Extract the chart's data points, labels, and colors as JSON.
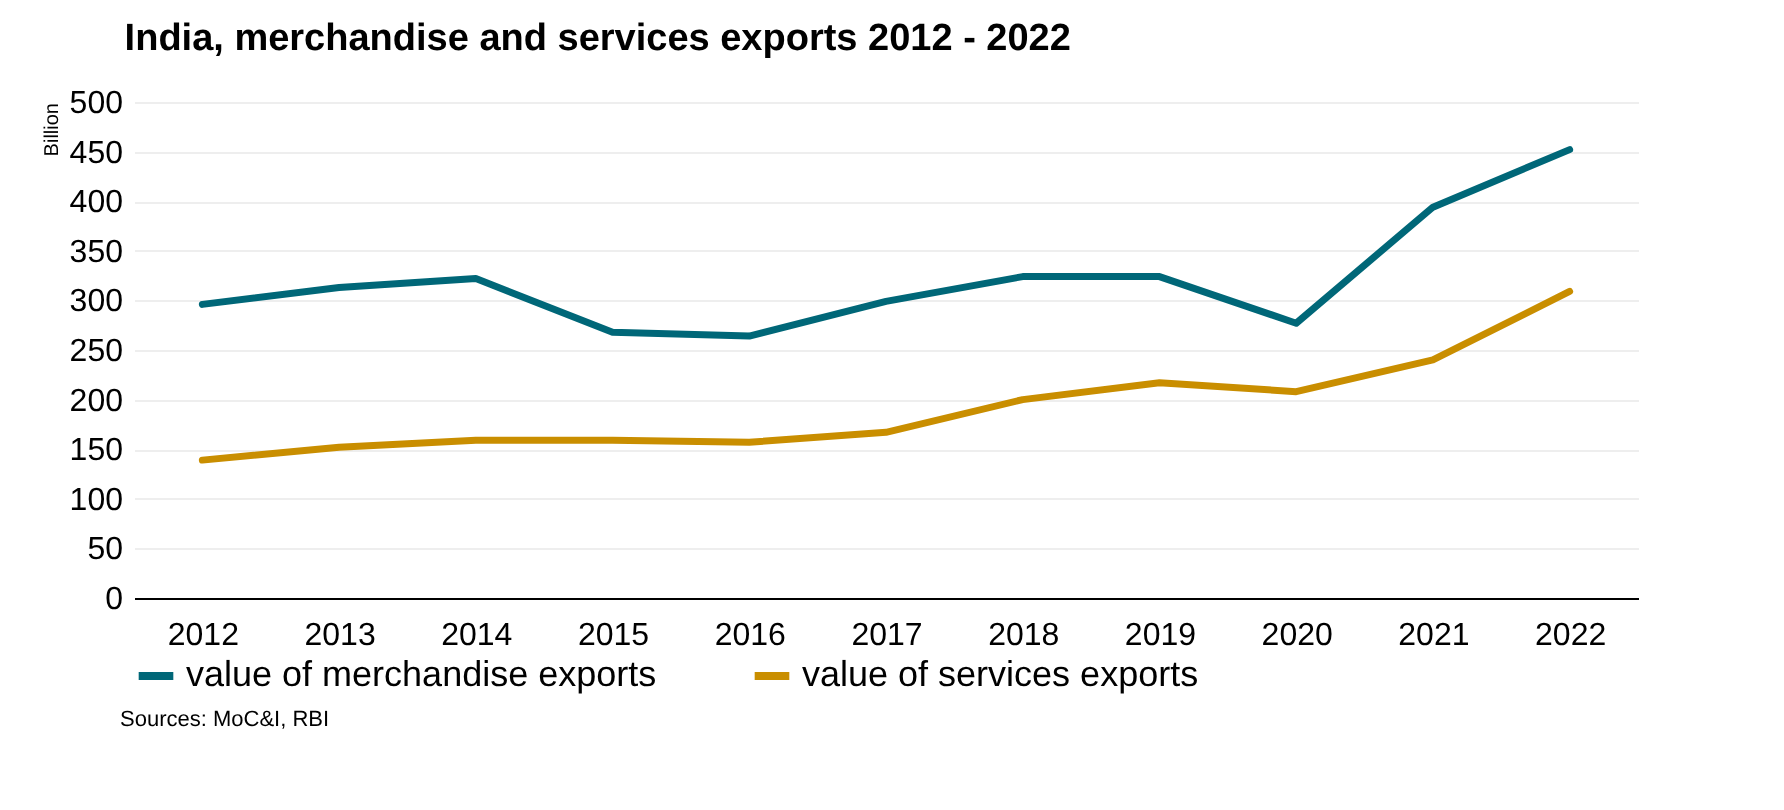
{
  "chart_data": {
    "type": "line",
    "title": "India, merchandise and services exports 2012 - 2022",
    "ylabel": "Billion",
    "categories": [
      "2012",
      "2013",
      "2014",
      "2015",
      "2016",
      "2017",
      "2018",
      "2019",
      "2020",
      "2021",
      "2022"
    ],
    "series": [
      {
        "name": "value of merchandise exports",
        "color": "#006778",
        "values": [
          296,
          313,
          322,
          268,
          264,
          299,
          324,
          324,
          277,
          394,
          452
        ]
      },
      {
        "name": "value of services exports",
        "color": "#c98e00",
        "values": [
          139,
          152,
          159,
          159,
          157,
          167,
          200,
          217,
          208,
          240,
          309
        ]
      }
    ],
    "ylim": [
      0,
      500
    ],
    "yticks": [
      0,
      50,
      100,
      150,
      200,
      250,
      300,
      350,
      400,
      450,
      500
    ],
    "grid": "y",
    "legend": "bottom",
    "marker": "none",
    "line_style": "solid",
    "annotations": [
      "Sources: MoC&I, RBI"
    ]
  }
}
